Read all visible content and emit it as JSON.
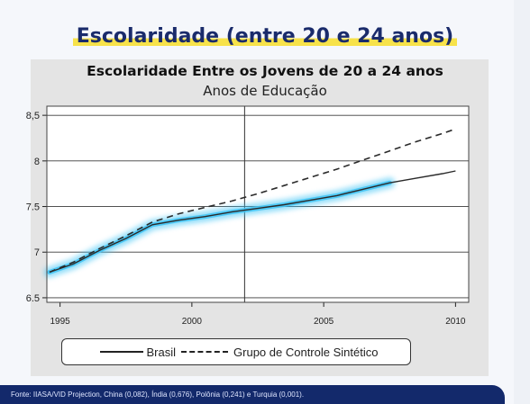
{
  "headline": "Escolaridade (entre 20 e 24 anos)",
  "footer": "Fonte: IIASA/VID Projection, China (0,082), Índia (0,676), Polônia (0,241) e Turquia (0,001).",
  "chart_data": {
    "type": "line",
    "title": "Escolaridade Entre os Jovens de 20 a 24 anos",
    "subtitle": "Anos de Educação",
    "xlabel": "",
    "ylabel": "",
    "xlim": [
      1994.5,
      2010.5
    ],
    "ylim": [
      6.45,
      8.6
    ],
    "x_ticks": [
      1995,
      2000,
      2005,
      2010
    ],
    "y_ticks": [
      6.5,
      7,
      7.5,
      8,
      8.5
    ],
    "y_tick_labels": [
      "6.5",
      "7",
      "7.5",
      "8",
      "8,5"
    ],
    "grid": true,
    "vertical_reference_line": 2002,
    "legend_position": "bottom",
    "series": [
      {
        "name": "Brasil",
        "style": "solid",
        "highlight_until": 2007.5,
        "x": [
          1994.6,
          1995.5,
          1996.5,
          1997.5,
          1998.5,
          1999.5,
          2000.5,
          2001.5,
          2002.0,
          2002.5,
          2003.5,
          2004.5,
          2005.5,
          2006.5,
          2007.5,
          2008.5,
          2009.5,
          2010.0
        ],
        "y": [
          6.78,
          6.87,
          7.02,
          7.15,
          7.3,
          7.35,
          7.39,
          7.44,
          7.46,
          7.48,
          7.52,
          7.57,
          7.62,
          7.69,
          7.76,
          7.81,
          7.86,
          7.89
        ]
      },
      {
        "name": "Grupo de Controle Sintético",
        "style": "dashed",
        "x": [
          1994.6,
          1995.5,
          1996.5,
          1997.5,
          1998.5,
          1999.5,
          2000.5,
          2001.5,
          2002.0,
          2002.5,
          2003.5,
          2004.5,
          2005.5,
          2006.5,
          2007.5,
          2008.5,
          2009.5,
          2010.0
        ],
        "y": [
          6.78,
          6.89,
          7.04,
          7.18,
          7.33,
          7.42,
          7.49,
          7.56,
          7.6,
          7.64,
          7.73,
          7.82,
          7.91,
          8.01,
          8.11,
          8.21,
          8.3,
          8.35
        ]
      }
    ],
    "colors": {
      "highlight": "#3fc4f5",
      "line": "#2a2a2a",
      "grid": "#3a3a3a",
      "plot_bg": "#ffffff"
    }
  }
}
